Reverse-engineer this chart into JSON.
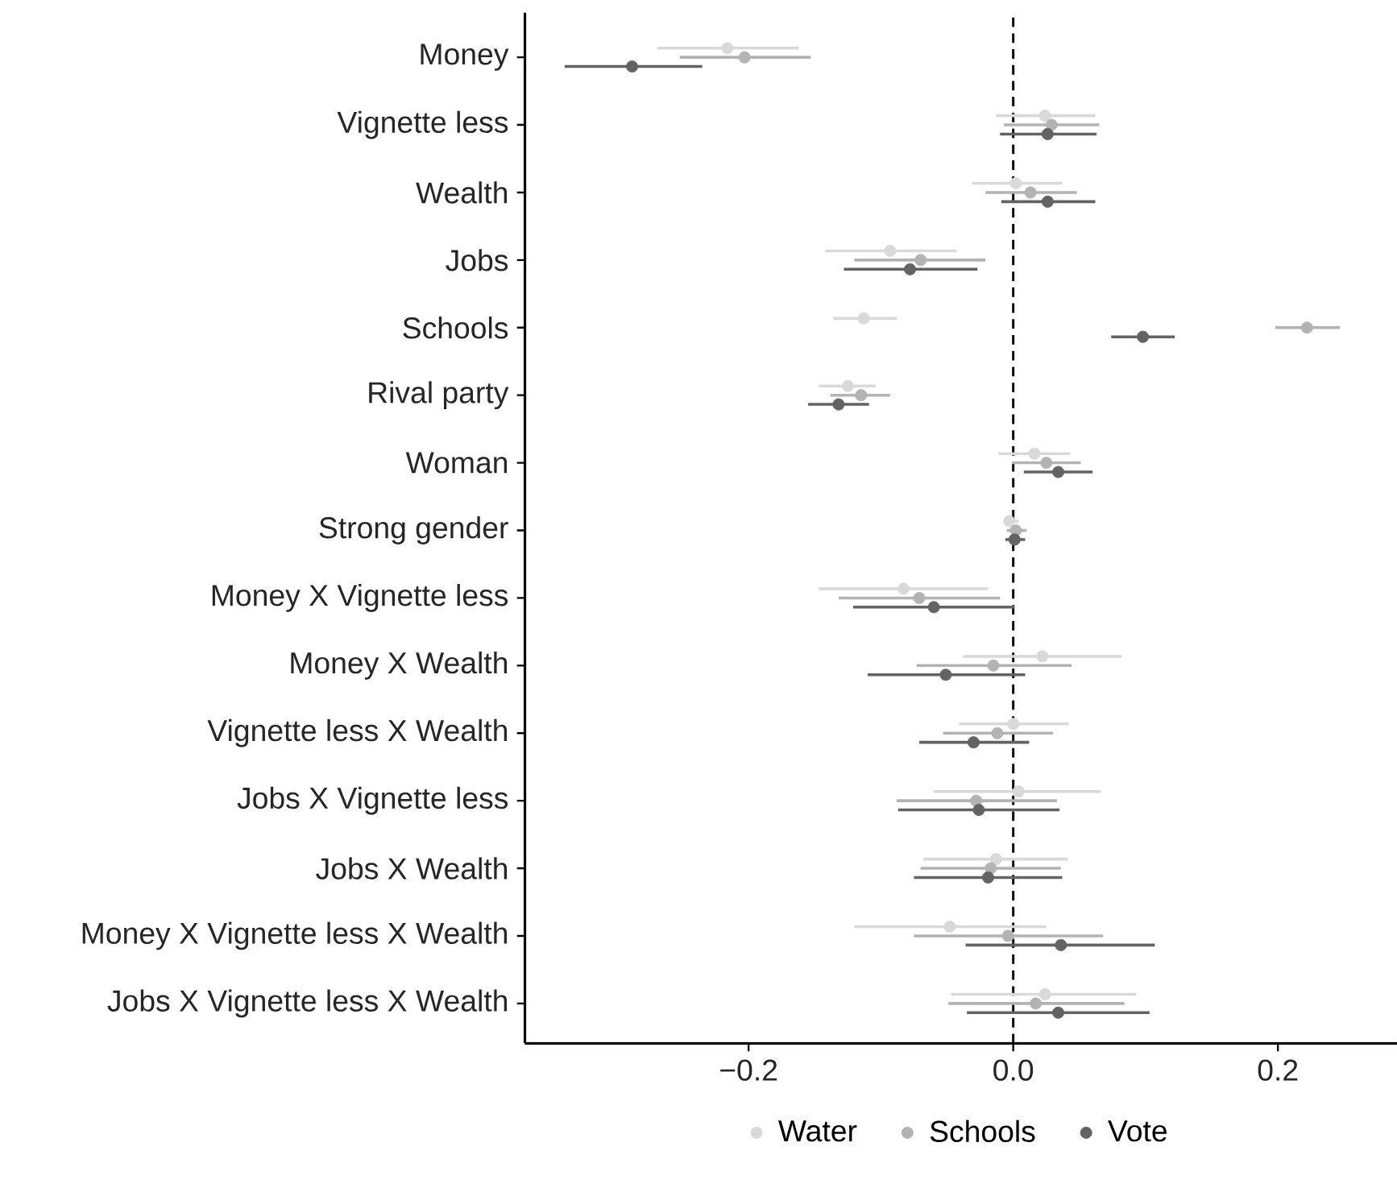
{
  "chart_data": {
    "type": "scatter",
    "orientation": "horizontal",
    "categories": [
      "Money",
      "Vignette less",
      "Wealth",
      "Jobs",
      "Schools",
      "Rival party",
      "Woman",
      "Strong gender",
      "Money X Vignette less",
      "Money X Wealth",
      "Vignette less X Wealth",
      "Jobs X Vignette less",
      "Jobs X Wealth",
      "Money X Vignette less X Wealth",
      "Jobs X Vignette less X Wealth"
    ],
    "series": [
      {
        "name": "Water",
        "color": "#d9d9d9",
        "values": [
          -0.216,
          0.024,
          0.002,
          -0.093,
          -0.113,
          -0.125,
          0.016,
          -0.003,
          -0.083,
          0.022,
          0.0,
          0.004,
          -0.013,
          -0.048,
          0.024
        ],
        "errors": [
          [
            -0.269,
            -0.162
          ],
          [
            -0.013,
            0.062
          ],
          [
            -0.031,
            0.037
          ],
          [
            -0.142,
            -0.043
          ],
          [
            -0.136,
            -0.088
          ],
          [
            -0.147,
            -0.104
          ],
          [
            -0.011,
            0.043
          ],
          [
            -0.007,
            0.004
          ],
          [
            -0.147,
            -0.019
          ],
          [
            -0.038,
            0.082
          ],
          [
            -0.041,
            0.042
          ],
          [
            -0.06,
            0.066
          ],
          [
            -0.068,
            0.041
          ],
          [
            -0.12,
            0.025
          ],
          [
            -0.047,
            0.093
          ]
        ]
      },
      {
        "name": "Schools",
        "color": "#b3b3b3",
        "values": [
          -0.203,
          0.029,
          0.013,
          -0.07,
          0.222,
          -0.115,
          0.025,
          0.002,
          -0.071,
          -0.015,
          -0.012,
          -0.028,
          -0.017,
          -0.004,
          0.017
        ],
        "errors": [
          [
            -0.252,
            -0.153
          ],
          [
            -0.007,
            0.065
          ],
          [
            -0.021,
            0.048
          ],
          [
            -0.12,
            -0.021
          ],
          [
            0.198,
            0.247
          ],
          [
            -0.138,
            -0.093
          ],
          [
            -0.001,
            0.051
          ],
          [
            -0.005,
            0.01
          ],
          [
            -0.132,
            -0.01
          ],
          [
            -0.073,
            0.044
          ],
          [
            -0.053,
            0.03
          ],
          [
            -0.088,
            0.033
          ],
          [
            -0.07,
            0.036
          ],
          [
            -0.075,
            0.068
          ],
          [
            -0.049,
            0.084
          ]
        ]
      },
      {
        "name": "Vote",
        "color": "#636363",
        "values": [
          -0.288,
          0.026,
          0.026,
          -0.078,
          0.098,
          -0.132,
          0.034,
          0.001,
          -0.06,
          -0.051,
          -0.03,
          -0.026,
          -0.019,
          0.036,
          0.034
        ],
        "errors": [
          [
            -0.339,
            -0.235
          ],
          [
            -0.01,
            0.063
          ],
          [
            -0.009,
            0.062
          ],
          [
            -0.128,
            -0.027
          ],
          [
            0.074,
            0.122
          ],
          [
            -0.155,
            -0.109
          ],
          [
            0.008,
            0.06
          ],
          [
            -0.006,
            0.009
          ],
          [
            -0.121,
            0.001
          ],
          [
            -0.11,
            0.009
          ],
          [
            -0.071,
            0.012
          ],
          [
            -0.087,
            0.035
          ],
          [
            -0.075,
            0.037
          ],
          [
            -0.036,
            0.107
          ],
          [
            -0.035,
            0.103
          ]
        ]
      }
    ],
    "xlim": [
      -0.369,
      0.29
    ],
    "xticks": [
      {
        "value": -0.2,
        "label": "−0.2"
      },
      {
        "value": 0,
        "label": "0.0"
      },
      {
        "value": 0.2,
        "label": "0.2"
      }
    ],
    "ref_lines": [
      {
        "axis": "x",
        "value": 0,
        "line_style": "dashed",
        "color": "#000000"
      }
    ],
    "grid": false,
    "legend": "bottom",
    "marker": "circle"
  }
}
